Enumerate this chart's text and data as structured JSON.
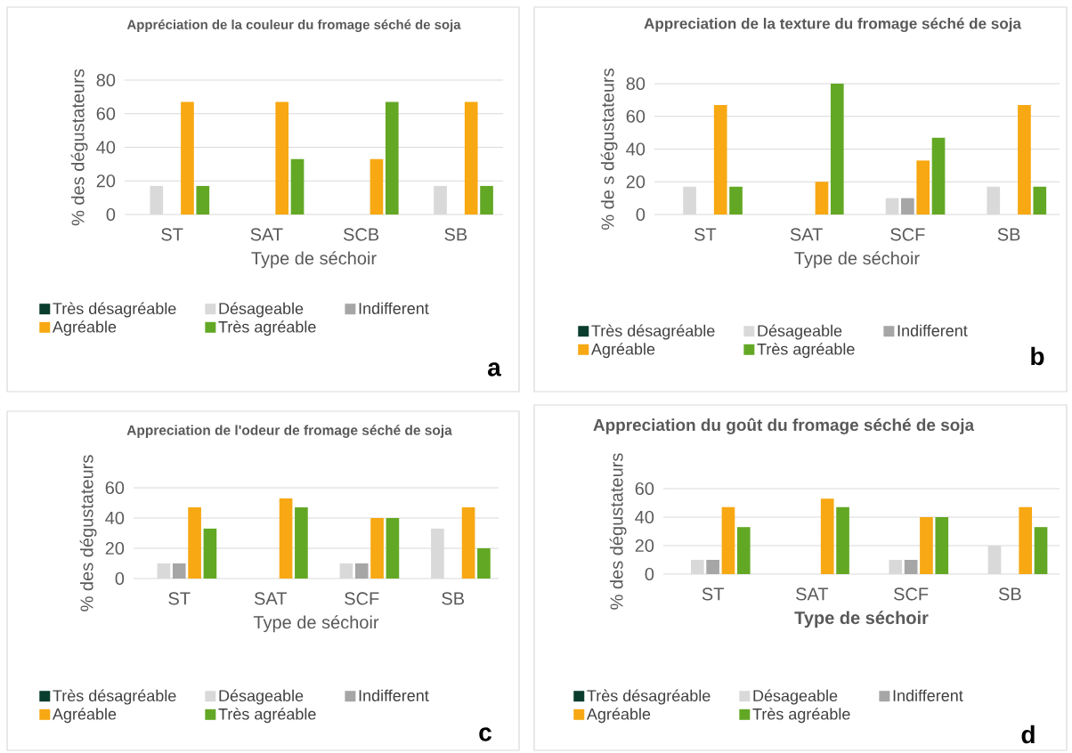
{
  "chart_data": [
    {
      "type": "bar",
      "title": "Appréciation de la couleur  du fromage séché de soja",
      "xlabel": "Type de séchoir",
      "ylabel": "% des dégustateurs",
      "categories": [
        "ST",
        "SAT",
        "SCB",
        "SB"
      ],
      "ylim": [
        0,
        80
      ],
      "yticks": [
        0,
        20,
        40,
        60,
        80
      ],
      "grid": "y",
      "legend": "bottom",
      "annotations": [
        "a"
      ],
      "series": [
        {
          "name": "Très désagréable",
          "color": "#0b3d2e",
          "values": [
            0,
            0,
            0,
            0
          ]
        },
        {
          "name": "Désageable",
          "color": "#d9d9d9",
          "values": [
            17,
            0,
            0,
            17
          ]
        },
        {
          "name": "Indifferent",
          "color": "#a6a6a6",
          "values": [
            0,
            0,
            0,
            0
          ]
        },
        {
          "name": "Agréable",
          "color": "#f7a812",
          "values": [
            67,
            67,
            33,
            67
          ]
        },
        {
          "name": "Très agréable",
          "color": "#63a825",
          "values": [
            17,
            33,
            67,
            17
          ]
        }
      ]
    },
    {
      "type": "bar",
      "title": "Appreciation de la texture du fromage séché de soja",
      "xlabel": "Type de séchoir",
      "ylabel": "% de s dégustateurs",
      "categories": [
        "ST",
        "SAT",
        "SCF",
        "SB"
      ],
      "ylim": [
        0,
        80
      ],
      "yticks": [
        0,
        20,
        40,
        60,
        80
      ],
      "grid": "y",
      "legend": "bottom",
      "annotations": [
        "b"
      ],
      "series": [
        {
          "name": "Très désagréable",
          "color": "#0b3d2e",
          "values": [
            0,
            0,
            0,
            0
          ]
        },
        {
          "name": "Désageable",
          "color": "#d9d9d9",
          "values": [
            17,
            0,
            10,
            17
          ]
        },
        {
          "name": "Indifferent",
          "color": "#a6a6a6",
          "values": [
            0,
            0,
            10,
            0
          ]
        },
        {
          "name": "Agréable",
          "color": "#f7a812",
          "values": [
            67,
            20,
            33,
            67
          ]
        },
        {
          "name": "Très agréable",
          "color": "#63a825",
          "values": [
            17,
            80,
            47,
            17
          ]
        }
      ]
    },
    {
      "type": "bar",
      "title": "Appreciation de l'odeur de fromage séché de soja",
      "xlabel": "Type de séchoir",
      "ylabel": "% des dégustateurs",
      "categories": [
        "ST",
        "SAT",
        "SCF",
        "SB"
      ],
      "ylim": [
        0,
        60
      ],
      "yticks": [
        0,
        20,
        40,
        60
      ],
      "grid": "y",
      "legend": "bottom",
      "annotations": [
        "c"
      ],
      "series": [
        {
          "name": "Très désagréable",
          "color": "#0b3d2e",
          "values": [
            0,
            0,
            0,
            0
          ]
        },
        {
          "name": "Désageable",
          "color": "#d9d9d9",
          "values": [
            10,
            0,
            10,
            33
          ]
        },
        {
          "name": "Indifferent",
          "color": "#a6a6a6",
          "values": [
            10,
            0,
            10,
            0
          ]
        },
        {
          "name": "Agréable",
          "color": "#f7a812",
          "values": [
            47,
            53,
            40,
            47
          ]
        },
        {
          "name": "Très agréable",
          "color": "#63a825",
          "values": [
            33,
            47,
            40,
            20
          ]
        }
      ]
    },
    {
      "type": "bar",
      "title": "Appreciation du goût du fromage séché de soja",
      "xlabel": "Type de séchoir",
      "ylabel": "% des dégustateurs",
      "categories": [
        "ST",
        "SAT",
        "SCF",
        "SB"
      ],
      "ylim": [
        0,
        60
      ],
      "yticks": [
        0,
        20,
        40,
        60
      ],
      "grid": "y",
      "legend": "bottom",
      "annotations": [
        "d"
      ],
      "series": [
        {
          "name": "Très désagréable",
          "color": "#0b3d2e",
          "values": [
            0,
            0,
            0,
            0
          ]
        },
        {
          "name": "Désageable",
          "color": "#d9d9d9",
          "values": [
            10,
            0,
            10,
            20
          ]
        },
        {
          "name": "Indifferent",
          "color": "#a6a6a6",
          "values": [
            10,
            0,
            10,
            0
          ]
        },
        {
          "name": "Agréable",
          "color": "#f7a812",
          "values": [
            47,
            53,
            40,
            47
          ]
        },
        {
          "name": "Très agréable",
          "color": "#63a825",
          "values": [
            33,
            47,
            40,
            33
          ]
        }
      ]
    }
  ]
}
